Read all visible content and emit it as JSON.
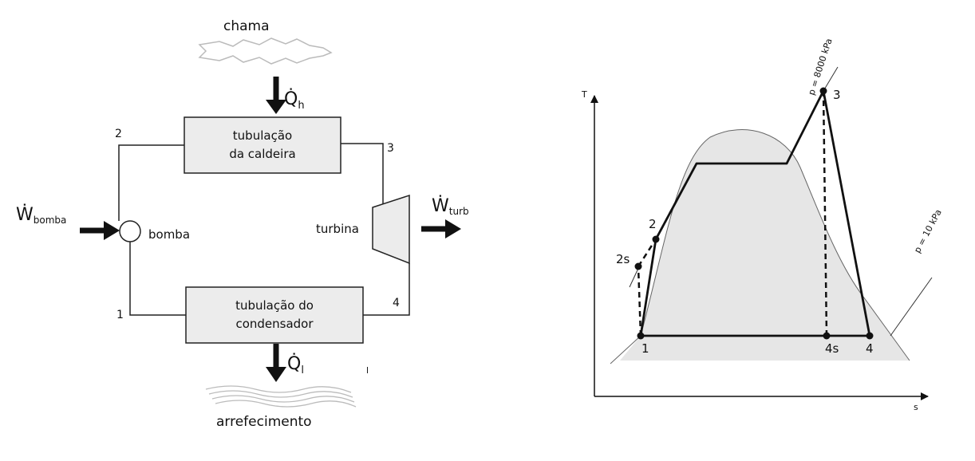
{
  "cycle": {
    "flame_label": "chama",
    "cooling_label": "arrefecimento",
    "heat_in": {
      "symbol": "Q̇",
      "subscript": "h"
    },
    "heat_out": {
      "symbol": "Q̇",
      "subscript": "l"
    },
    "pump_work": {
      "symbol": "Ẇ",
      "subscript": "bomba"
    },
    "turbine_work": {
      "symbol": "Ẇ",
      "subscript": "turb"
    },
    "boiler": {
      "line1": "tubulação",
      "line2": "da caldeira"
    },
    "condenser": {
      "line1": "tubulação do",
      "line2": "condensador"
    },
    "pump_label": "bomba",
    "turbine_label": "turbina",
    "state_points": {
      "p1": "1",
      "p2": "2",
      "p3": "3",
      "p4": "4"
    },
    "stray_mark": "l"
  },
  "ts": {
    "y_axis": "T",
    "x_axis": "s",
    "isobar_high": "p = 8000 kPa",
    "isobar_low": "p = 10 kPa",
    "points": {
      "p1": "1",
      "p2": "2",
      "p2s": "2s",
      "p3": "3",
      "p4": "4",
      "p4s": "4s"
    }
  },
  "colors": {
    "fill": "#e6e6e6",
    "line": "#111111"
  }
}
